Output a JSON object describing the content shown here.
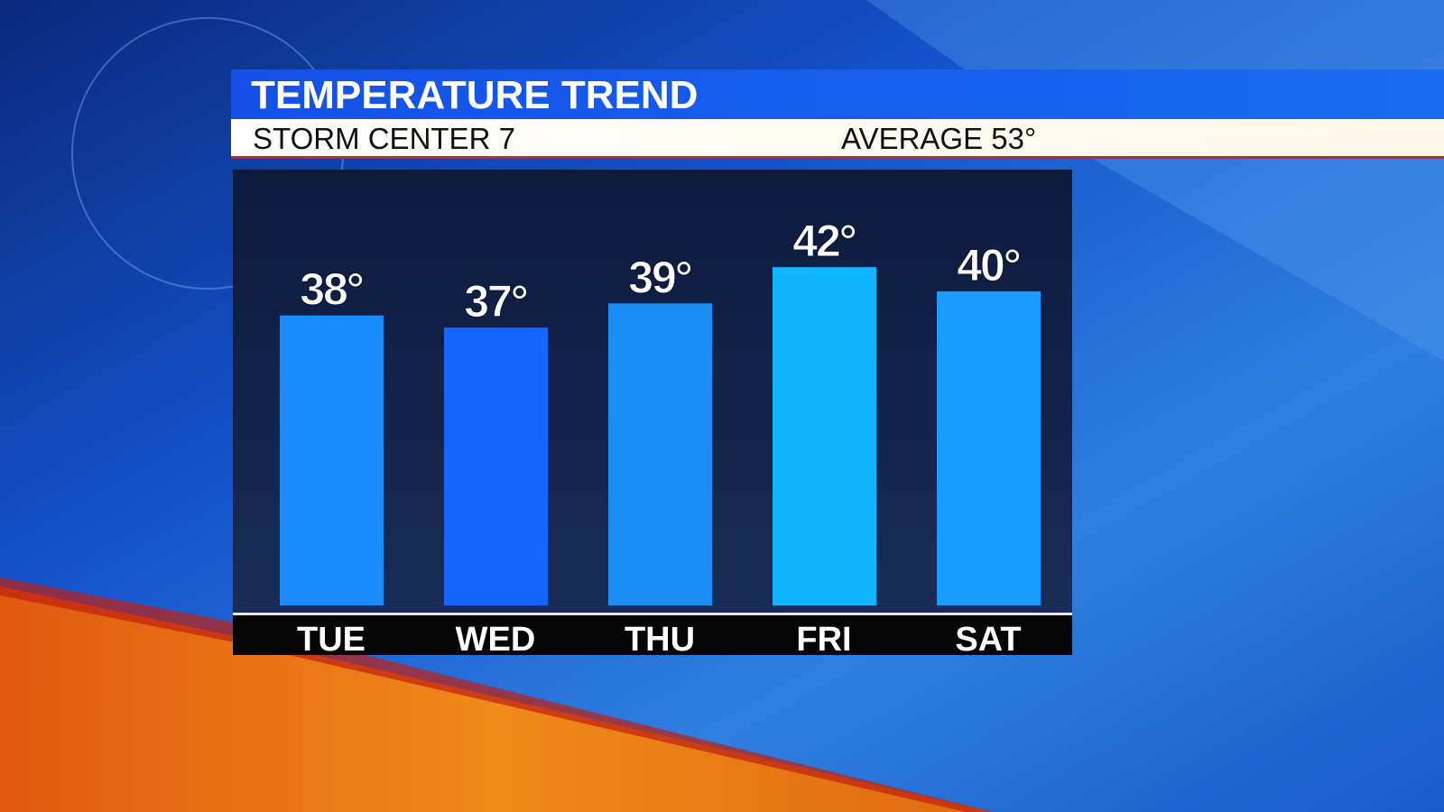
{
  "chart_data": {
    "type": "bar",
    "title": "TEMPERATURE TREND",
    "subtitle": "STORM CENTER 7",
    "annotation": "AVERAGE 53°",
    "categories": [
      "TUE",
      "WED",
      "THU",
      "FRI",
      "SAT"
    ],
    "values": [
      38,
      37,
      39,
      42,
      40
    ],
    "value_labels": [
      "38°",
      "37°",
      "39°",
      "42°",
      "40°"
    ],
    "colors": [
      "#1a8cff",
      "#1566ff",
      "#1a8df6",
      "#12b6ff",
      "#1a9bff"
    ],
    "ylim": [
      14,
      50
    ]
  }
}
